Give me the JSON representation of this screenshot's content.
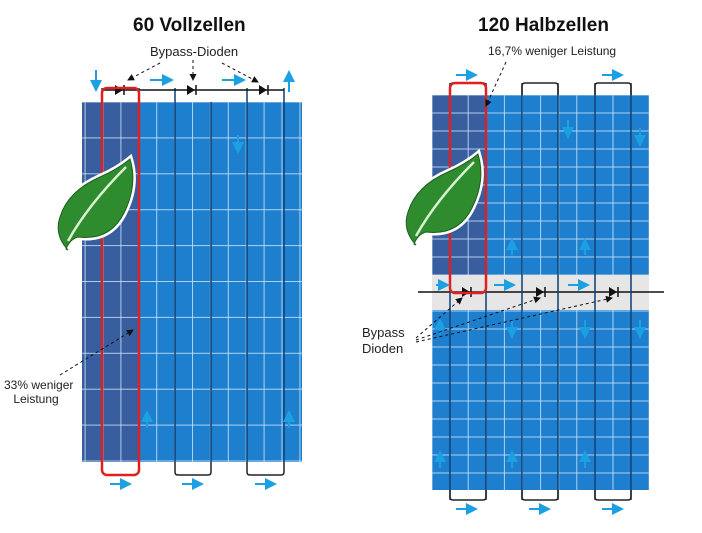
{
  "left_panel": {
    "title": "60 Vollzellen",
    "diode_label": "Bypass-Dioden",
    "loss_label_line1": "33% weniger",
    "loss_label_line2": "Leistung"
  },
  "right_panel": {
    "title": "120 Halbzellen",
    "loss_label": "16,7% weniger Leistung",
    "diode_label_line1": "Bypass",
    "diode_label_line2": "Dioden"
  },
  "colors": {
    "panel_blue": "#1f7fcf",
    "panel_dark": "#1a63a8",
    "shaded": "#3b5b9a",
    "highlight": "#e02020",
    "arrow": "#1ba1e2",
    "leaf": "#2e8b2e",
    "diode_bar": "#e6e6e6"
  },
  "icons": [
    "leaf-icon",
    "diode-icon",
    "flow-arrow-icon"
  ]
}
